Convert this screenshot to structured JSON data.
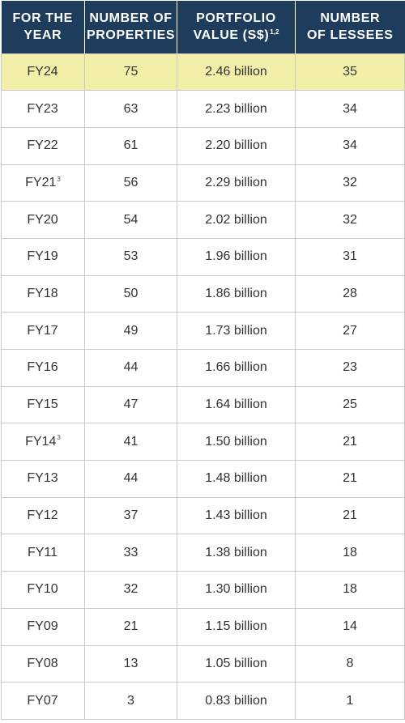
{
  "headers": {
    "year": {
      "line1": "FOR THE",
      "line2": "YEAR"
    },
    "properties": {
      "line1": "NUMBER OF",
      "line2": "PROPERTIES"
    },
    "value": {
      "line1": "PORTFOLIO",
      "line2": "VALUE (S$)",
      "footnote": "1,2"
    },
    "lessees": {
      "line1": "NUMBER",
      "line2": "OF LESSEES"
    }
  },
  "rows": [
    {
      "year": "FY24",
      "footnote": "",
      "properties": "75",
      "value": "2.46 billion",
      "lessees": "35",
      "highlight": true
    },
    {
      "year": "FY23",
      "footnote": "",
      "properties": "63",
      "value": "2.23 billion",
      "lessees": "34"
    },
    {
      "year": "FY22",
      "footnote": "",
      "properties": "61",
      "value": "2.20 billion",
      "lessees": "34"
    },
    {
      "year": "FY21",
      "footnote": "3",
      "properties": "56",
      "value": "2.29 billion",
      "lessees": "32"
    },
    {
      "year": "FY20",
      "footnote": "",
      "properties": "54",
      "value": "2.02 billion",
      "lessees": "32"
    },
    {
      "year": "FY19",
      "footnote": "",
      "properties": "53",
      "value": "1.96 billion",
      "lessees": "31"
    },
    {
      "year": "FY18",
      "footnote": "",
      "properties": "50",
      "value": "1.86 billion",
      "lessees": "28"
    },
    {
      "year": "FY17",
      "footnote": "",
      "properties": "49",
      "value": "1.73 billion",
      "lessees": "27"
    },
    {
      "year": "FY16",
      "footnote": "",
      "properties": "44",
      "value": "1.66 billion",
      "lessees": "23"
    },
    {
      "year": "FY15",
      "footnote": "",
      "properties": "47",
      "value": "1.64 billion",
      "lessees": "25"
    },
    {
      "year": "FY14",
      "footnote": "3",
      "properties": "41",
      "value": "1.50 billion",
      "lessees": "21"
    },
    {
      "year": "FY13",
      "footnote": "",
      "properties": "44",
      "value": "1.48 billion",
      "lessees": "21"
    },
    {
      "year": "FY12",
      "footnote": "",
      "properties": "37",
      "value": "1.43 billion",
      "lessees": "21"
    },
    {
      "year": "FY11",
      "footnote": "",
      "properties": "33",
      "value": "1.38 billion",
      "lessees": "18"
    },
    {
      "year": "FY10",
      "footnote": "",
      "properties": "32",
      "value": "1.30 billion",
      "lessees": "18"
    },
    {
      "year": "FY09",
      "footnote": "",
      "properties": "21",
      "value": "1.15 billion",
      "lessees": "14"
    },
    {
      "year": "FY08",
      "footnote": "",
      "properties": "13",
      "value": "1.05 billion",
      "lessees": "8"
    },
    {
      "year": "FY07",
      "footnote": "",
      "properties": "3",
      "value": "0.83 billion",
      "lessees": "1"
    }
  ],
  "colors": {
    "header_bg": "#1e3d5c",
    "header_text": "#ffffff",
    "highlight_row": "#f4efa8",
    "border": "#c9c9c9",
    "body_text": "#333333"
  }
}
